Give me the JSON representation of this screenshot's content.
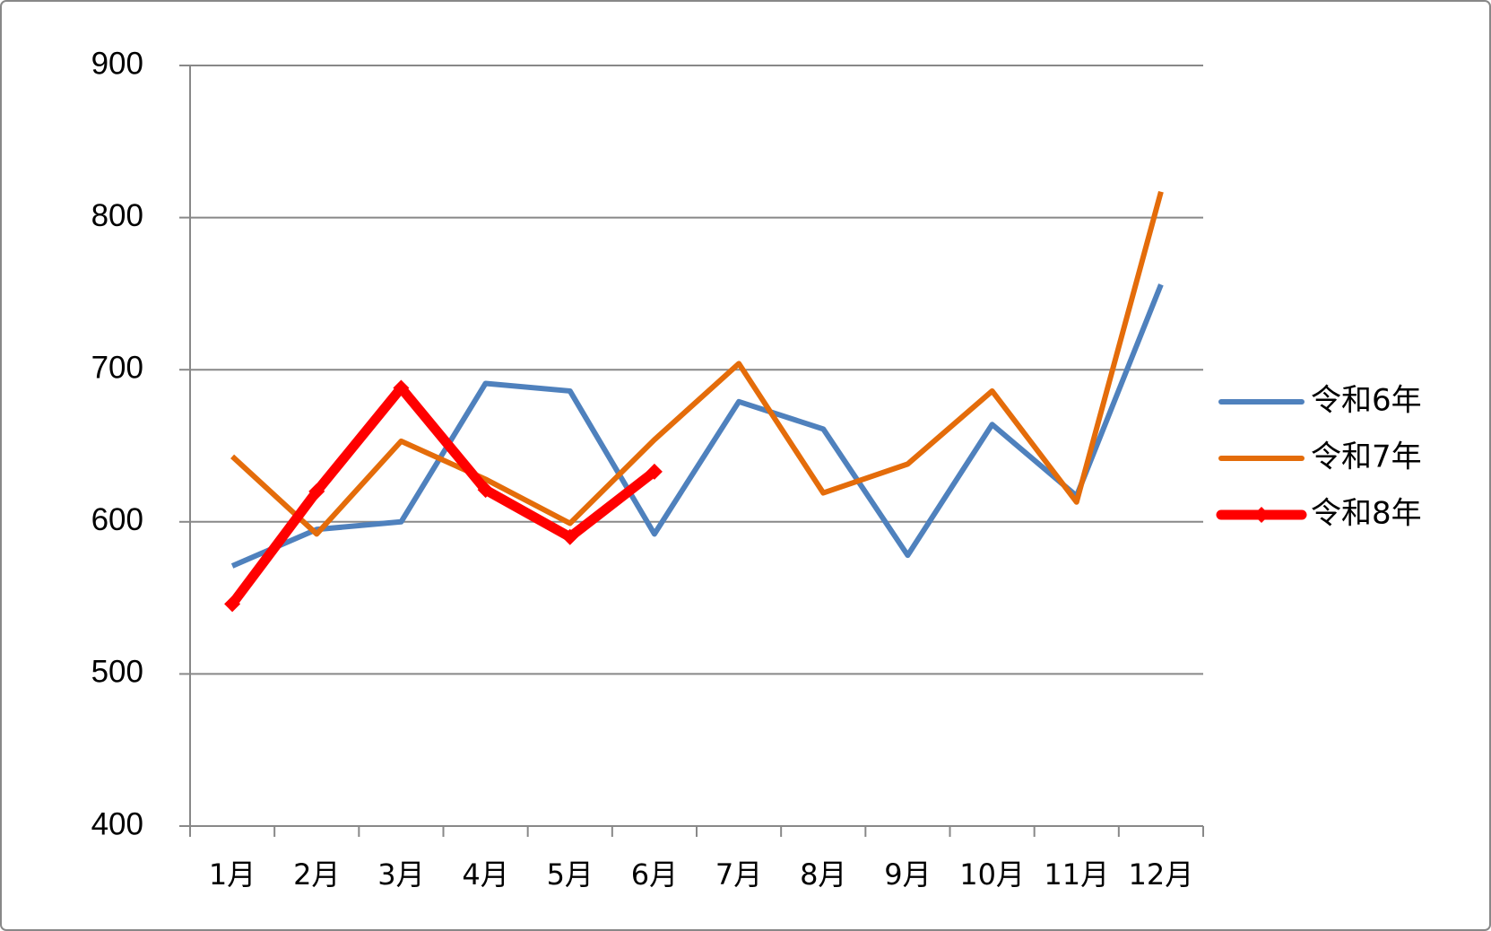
{
  "chart_data": {
    "type": "line",
    "categories": [
      "1月",
      "2月",
      "3月",
      "4月",
      "5月",
      "6月",
      "7月",
      "8月",
      "9月",
      "10月",
      "11月",
      "12月"
    ],
    "series": [
      {
        "name": "令和6年",
        "color": "#4f81bd",
        "values": [
          571,
          595,
          600,
          691,
          686,
          592,
          679,
          661,
          578,
          664,
          617,
          756
        ]
      },
      {
        "name": "令和7年",
        "color": "#e46c0a",
        "values": [
          643,
          592,
          653,
          628,
          599,
          654,
          704,
          619,
          638,
          686,
          613,
          817
        ]
      },
      {
        "name": "令和8年",
        "color": "#ff0000",
        "marker": "diamond",
        "values": [
          546,
          620,
          688,
          621,
          590,
          633,
          null,
          null,
          null,
          null,
          null,
          null
        ]
      }
    ],
    "ylim": [
      400,
      900
    ],
    "yticks": [
      400,
      500,
      600,
      700,
      800,
      900
    ],
    "grid": true,
    "legend": "right"
  }
}
